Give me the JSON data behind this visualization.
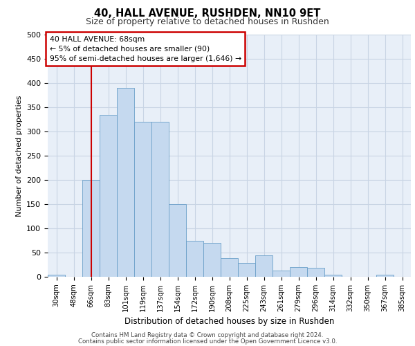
{
  "title1": "40, HALL AVENUE, RUSHDEN, NN10 9ET",
  "title2": "Size of property relative to detached houses in Rushden",
  "xlabel": "Distribution of detached houses by size in Rushden",
  "ylabel": "Number of detached properties",
  "footer1": "Contains HM Land Registry data © Crown copyright and database right 2024.",
  "footer2": "Contains public sector information licensed under the Open Government Licence v3.0.",
  "annotation_line1": "40 HALL AVENUE: 68sqm",
  "annotation_line2": "← 5% of detached houses are smaller (90)",
  "annotation_line3": "95% of semi-detached houses are larger (1,646) →",
  "bar_color": "#c5d9ef",
  "bar_edge_color": "#6a9fc8",
  "vline_color": "#cc0000",
  "annotation_box_color": "#cc0000",
  "grid_color": "#c8d4e4",
  "background_color": "#e8eff8",
  "fig_background": "#ffffff",
  "categories": [
    "30sqm",
    "48sqm",
    "66sqm",
    "83sqm",
    "101sqm",
    "119sqm",
    "137sqm",
    "154sqm",
    "172sqm",
    "190sqm",
    "208sqm",
    "225sqm",
    "243sqm",
    "261sqm",
    "279sqm",
    "296sqm",
    "314sqm",
    "332sqm",
    "350sqm",
    "367sqm",
    "385sqm"
  ],
  "values": [
    5,
    0,
    200,
    335,
    390,
    320,
    320,
    150,
    75,
    70,
    38,
    28,
    45,
    13,
    20,
    18,
    5,
    0,
    0,
    4,
    0
  ],
  "vline_position": 2.0,
  "ylim": [
    0,
    500
  ],
  "yticks": [
    0,
    50,
    100,
    150,
    200,
    250,
    300,
    350,
    400,
    450,
    500
  ]
}
